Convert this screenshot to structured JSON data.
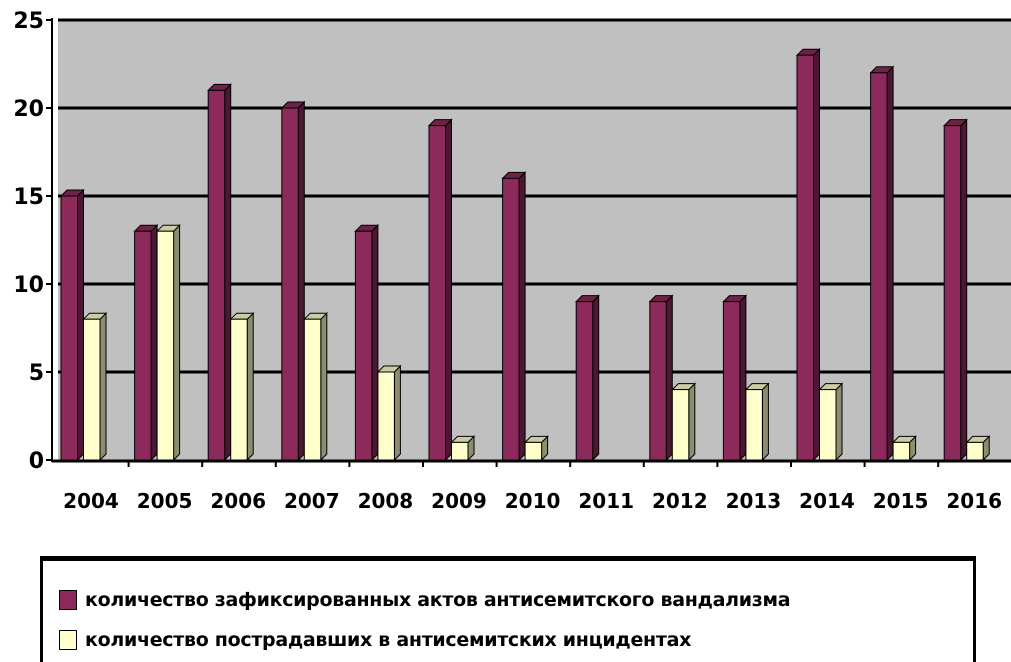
{
  "chart_data": {
    "type": "bar",
    "title": "",
    "xlabel": "",
    "ylabel": "",
    "categories": [
      "2004",
      "2005",
      "2006",
      "2007",
      "2008",
      "2009",
      "2010",
      "2011",
      "2012",
      "2013",
      "2014",
      "2015",
      "2016"
    ],
    "series": [
      {
        "name": "количество зафиксированных актов антисемитского вандализма",
        "color": "#8B2A5B",
        "values": [
          15,
          13,
          21,
          20,
          13,
          19,
          16,
          9,
          9,
          9,
          23,
          22,
          19
        ]
      },
      {
        "name": "количество пострадавших в антисемитских инцидентах",
        "color": "#FFFFCC",
        "values": [
          8,
          13,
          8,
          8,
          5,
          1,
          1,
          0,
          4,
          4,
          4,
          1,
          1
        ]
      }
    ],
    "ylim": [
      0,
      25
    ],
    "yticks": [
      "0",
      "5",
      "10",
      "15",
      "20",
      "25"
    ],
    "grid": true,
    "plot_background": "#C0C0C0",
    "legend_position": "bottom"
  }
}
